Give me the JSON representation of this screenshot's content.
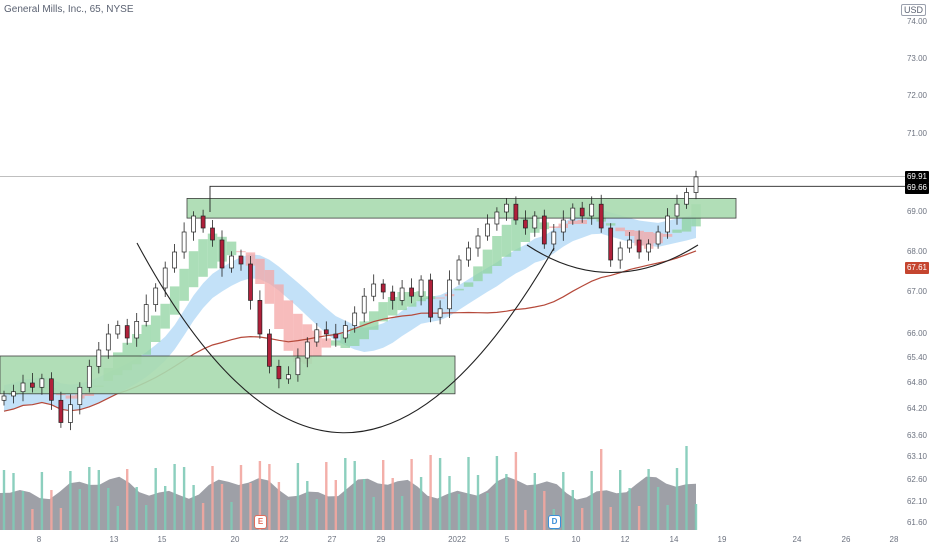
{
  "header": {
    "symbol_title": "General Mills, Inc., 65, NYSE",
    "currency": "USD"
  },
  "price_axis": [
    "74.00",
    "73.00",
    "72.00",
    "71.00",
    "69.00",
    "68.00",
    "67.00",
    "66.00",
    "65.40",
    "64.80",
    "64.20",
    "63.60",
    "63.10",
    "62.60",
    "62.10",
    "61.60"
  ],
  "price_tags": [
    {
      "value": "69.91",
      "bg": "#000000"
    },
    {
      "value": "69.66",
      "bg": "#000000"
    },
    {
      "value": "67.61",
      "bg": "#c5452f"
    }
  ],
  "date_axis": [
    "8",
    "13",
    "15",
    "20",
    "22",
    "27",
    "29",
    "2022",
    "5",
    "10",
    "12",
    "14",
    "19",
    "24",
    "26",
    "28"
  ],
  "events": [
    {
      "letter": "E",
      "color": "#e06c5b",
      "label": "earnings"
    },
    {
      "letter": "D",
      "color": "#3b8fd9",
      "label": "dividend"
    }
  ],
  "colors": {
    "up": "#ffffff",
    "down": "#b0203a",
    "wick": "#222222",
    "zone_fill": "#a9dbb0",
    "zone_stroke": "#2b2b2b",
    "ribbon_green": "#8fd3a0",
    "ribbon_red": "#f4a6a6",
    "ribbon_blue": "#b9dcf7",
    "ma_line": "#b5493a",
    "vol_up": "#7fcab7",
    "vol_down": "#f2a6a0",
    "vol_area": "#8d8f98"
  },
  "chart_data": {
    "type": "candlestick",
    "title": "General Mills, Inc., 65, NYSE",
    "ylim": [
      61.6,
      74.0
    ],
    "x_ticks": [
      "8",
      "13",
      "15",
      "20",
      "22",
      "27",
      "29",
      "2022",
      "5",
      "10",
      "12",
      "14",
      "19",
      "24",
      "26",
      "28"
    ],
    "last_price": 69.91,
    "reference_price": 69.66,
    "moving_average_last": 67.61,
    "resistance_zone": [
      68.85,
      69.35
    ],
    "support_zone": [
      64.55,
      65.45
    ],
    "close_path": [
      64.5,
      64.6,
      64.8,
      64.7,
      64.9,
      64.4,
      63.9,
      64.3,
      64.7,
      65.2,
      65.6,
      66.0,
      66.2,
      65.9,
      66.3,
      66.7,
      67.1,
      67.6,
      68.0,
      68.5,
      68.9,
      68.6,
      68.3,
      67.6,
      67.9,
      67.7,
      66.8,
      66.0,
      65.2,
      64.9,
      65.0,
      65.4,
      65.8,
      66.1,
      66.0,
      65.9,
      66.2,
      66.5,
      66.9,
      67.2,
      67.0,
      66.8,
      67.1,
      66.9,
      67.3,
      66.4,
      66.6,
      67.3,
      67.8,
      68.1,
      68.4,
      68.7,
      69.0,
      69.2,
      68.8,
      68.6,
      68.9,
      68.2,
      68.5,
      68.8,
      69.1,
      68.9,
      69.2,
      68.6,
      67.8,
      68.1,
      68.3,
      68.0,
      68.2,
      68.5,
      68.9,
      69.2,
      69.5,
      69.9
    ]
  }
}
